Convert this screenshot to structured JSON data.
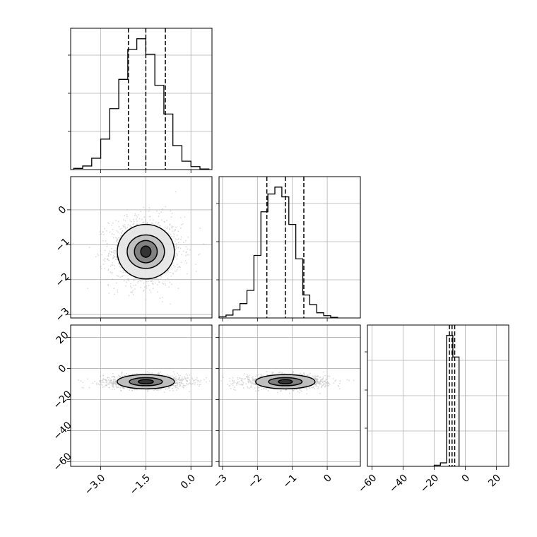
{
  "chart_data": {
    "type": "corner",
    "style": {
      "line_color": "#000000",
      "grid_color": "#b0b0b0",
      "scatter_color": "#bdbdbd"
    },
    "parameters": [
      {
        "range": [
          -4.0,
          0.7
        ],
        "ticks": [
          -3.0,
          -1.5,
          0.0
        ],
        "tick_labels": [
          "−3.0",
          "−1.5",
          "0.0"
        ],
        "quantiles": [
          -2.08,
          -1.5,
          -0.85
        ],
        "hist_edges_start": -3.9,
        "hist_bin_width": 0.3,
        "hist_counts": [
          2,
          6,
          19,
          51,
          102,
          151,
          201,
          219,
          193,
          141,
          93,
          40,
          14,
          5,
          1
        ]
      },
      {
        "range": [
          -3.1,
          0.95
        ],
        "ticks": [
          -3,
          -2,
          -1,
          0
        ],
        "tick_labels": [
          "−3",
          "−2",
          "−1",
          "0"
        ],
        "y_tick_labels": [
          "−3",
          "−2",
          "−1",
          "0"
        ],
        "quantiles": [
          -1.73,
          -1.2,
          -0.67
        ],
        "hist_edges_start": -3.1,
        "hist_bin_width": 0.2,
        "hist_counts": [
          2,
          5,
          14,
          25,
          48,
          109,
          185,
          216,
          228,
          211,
          163,
          103,
          40,
          23,
          9,
          4,
          1
        ]
      },
      {
        "range": [
          -63,
          28
        ],
        "ticks": [
          -60,
          -40,
          -20,
          0,
          20
        ],
        "tick_labels": [
          "−60",
          "−40",
          "−20",
          "0",
          "20"
        ],
        "y_ticks": [
          20,
          0,
          -20,
          -40,
          -60
        ],
        "y_tick_labels": [
          "20",
          "0",
          "−20",
          "−40",
          "−60"
        ],
        "quantiles": [
          -10.2,
          -8.5,
          -6.8
        ],
        "hist_bins": [
          [
            -20,
            -16,
            2
          ],
          [
            -16,
            -12,
            6
          ],
          [
            -12,
            -8,
            225
          ],
          [
            -8,
            -4,
            188
          ]
        ]
      }
    ],
    "pairs": [
      {
        "x": 0,
        "y": 1,
        "center": [
          -1.5,
          -1.2
        ],
        "spread": [
          0.6,
          0.5
        ],
        "contour_radii": [
          [
            0.17,
            0.16
          ],
          [
            0.38,
            0.32
          ],
          [
            0.62,
            0.48
          ],
          [
            0.95,
            0.78
          ]
        ]
      },
      {
        "x": 0,
        "y": 2,
        "center": [
          -1.5,
          -8.5
        ],
        "spread": [
          0.7,
          2.2
        ],
        "contour_radii": [
          [
            0.25,
            1.4
          ],
          [
            0.55,
            2.6
          ],
          [
            0.95,
            4.6
          ]
        ]
      },
      {
        "x": 1,
        "y": 2,
        "center": [
          -1.2,
          -8.5
        ],
        "spread": [
          0.6,
          2.2
        ],
        "contour_radii": [
          [
            0.2,
            1.4
          ],
          [
            0.48,
            2.6
          ],
          [
            0.85,
            4.6
          ]
        ]
      }
    ]
  }
}
